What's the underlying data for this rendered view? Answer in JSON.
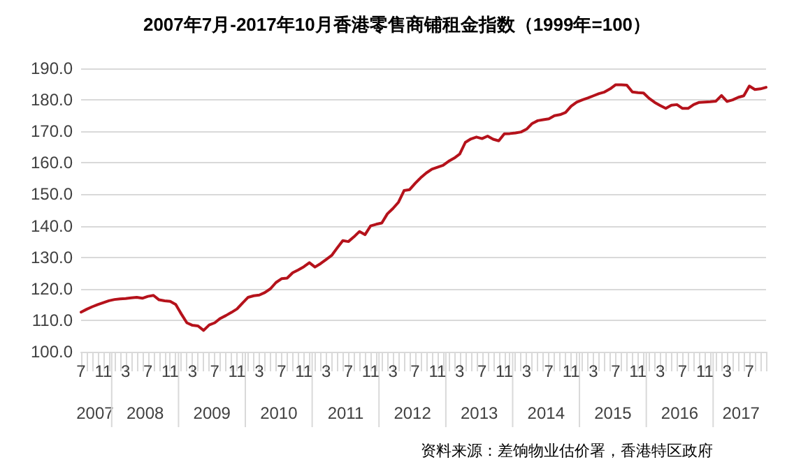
{
  "chart_data": {
    "type": "line",
    "title": "2007年7月-2017年10月香港零售商铺租金指数（1999年=100）",
    "categories": [
      "7",
      null,
      null,
      null,
      "11",
      null,
      null,
      null,
      "3",
      null,
      null,
      null,
      "7",
      null,
      null,
      null,
      "11",
      null,
      null,
      null,
      "3",
      null,
      null,
      null,
      "7",
      null,
      null,
      null,
      "11",
      null,
      null,
      null,
      "3",
      null,
      null,
      null,
      "7",
      null,
      null,
      null,
      "11",
      null,
      null,
      null,
      "3",
      null,
      null,
      null,
      "7",
      null,
      null,
      null,
      "11",
      null,
      null,
      null,
      "3",
      null,
      null,
      null,
      "7",
      null,
      null,
      null,
      "11",
      null,
      null,
      null,
      "3",
      null,
      null,
      null,
      "7",
      null,
      null,
      null,
      "11",
      null,
      null,
      null,
      "3",
      null,
      null,
      null,
      "7",
      null,
      null,
      null,
      "11",
      null,
      null,
      null,
      "3",
      null,
      null,
      null,
      "7",
      null,
      null,
      null,
      "11",
      null,
      null,
      null,
      "3",
      null,
      null,
      null,
      "7",
      null,
      null,
      null,
      "11",
      null,
      null,
      null,
      "3",
      null,
      null,
      null,
      "7",
      null,
      null,
      null
    ],
    "series": [
      {
        "color": "#b5121b",
        "values": [
          112.6,
          113.5,
          114.3,
          115.0,
          115.6,
          116.2,
          116.6,
          116.8,
          116.9,
          117.1,
          117.3,
          117.0,
          117.6,
          117.9,
          116.5,
          116.2,
          116.0,
          115.0,
          112.0,
          109.2,
          108.4,
          108.2,
          106.8,
          108.5,
          109.2,
          110.6,
          111.5,
          112.5,
          113.6,
          115.5,
          117.3,
          117.8,
          118.0,
          118.8,
          120.0,
          122.0,
          123.2,
          123.4,
          125.1,
          126.0,
          127.0,
          128.3,
          126.9,
          128.0,
          129.3,
          130.6,
          133.0,
          135.3,
          135.0,
          136.5,
          138.2,
          137.2,
          140.0,
          140.5,
          140.9,
          143.8,
          145.5,
          147.5,
          151.2,
          151.5,
          153.5,
          155.3,
          156.8,
          158.0,
          158.6,
          159.2,
          160.5,
          161.5,
          162.8,
          166.5,
          167.6,
          168.2,
          167.7,
          168.5,
          167.5,
          167.0,
          169.2,
          169.3,
          169.5,
          169.8,
          170.7,
          172.5,
          173.4,
          173.7,
          174.0,
          175.0,
          175.3,
          176.0,
          178.0,
          179.3,
          180.0,
          180.6,
          181.3,
          182.0,
          182.5,
          183.5,
          184.8,
          184.8,
          184.7,
          182.5,
          182.3,
          182.2,
          180.5,
          179.2,
          178.2,
          177.3,
          178.3,
          178.5,
          177.3,
          177.3,
          178.5,
          179.2,
          179.3,
          179.4,
          179.6,
          181.4,
          179.5,
          180.0,
          180.8,
          181.3,
          184.4,
          183.3,
          183.5,
          184.0
        ]
      }
    ],
    "ylim": [
      100,
      190
    ],
    "yticks": [
      {
        "value": 100,
        "label": "100.0"
      },
      {
        "value": 110,
        "label": "110.0"
      },
      {
        "value": 120,
        "label": "120.0"
      },
      {
        "value": 130,
        "label": "130.0"
      },
      {
        "value": 140,
        "label": "140.0"
      },
      {
        "value": 150,
        "label": "150.0"
      },
      {
        "value": 160,
        "label": "160.0"
      },
      {
        "value": 170,
        "label": "170.0"
      },
      {
        "value": 180,
        "label": "180.0"
      },
      {
        "value": 190,
        "label": "190.0"
      }
    ],
    "grid": "y",
    "marker": "none",
    "line_style": "solid",
    "annotations": [
      "资料来源：差饷物业估价署，香港特区政府",
      "2007",
      "2008",
      "2009",
      "2010",
      "2011",
      "2012",
      "2013",
      "2014",
      "2015",
      "2016",
      "2017"
    ]
  }
}
